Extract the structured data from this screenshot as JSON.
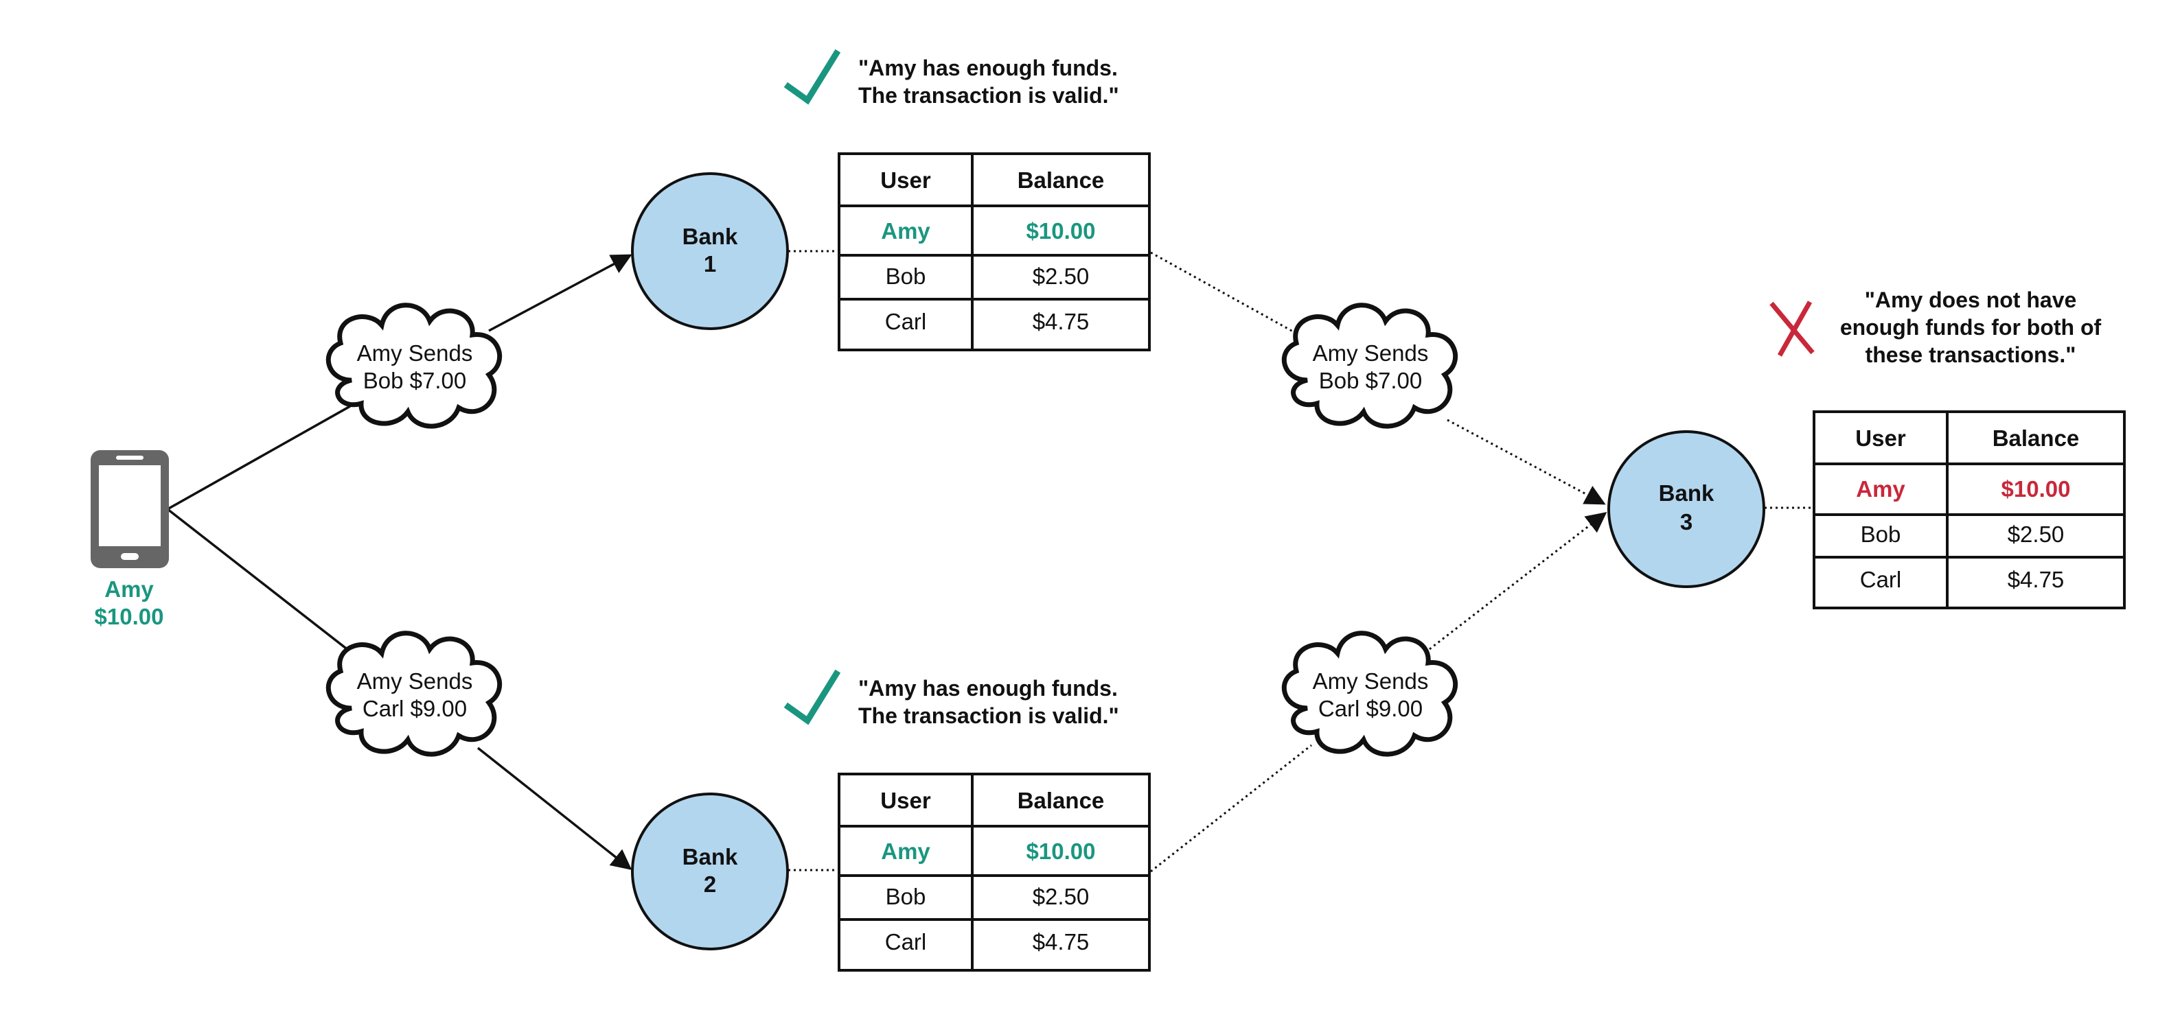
{
  "colors": {
    "ok": "#1a9680",
    "error": "#c8283a",
    "bank_fill": "#b3d6ef",
    "line": "#111111",
    "phone": "#666666"
  },
  "phone": {
    "icon": "smartphone-icon",
    "user": "Amy",
    "amount": "$10.00"
  },
  "clouds": [
    {
      "line1": "Amy Sends",
      "line2": "Bob $7.00"
    },
    {
      "line1": "Amy Sends",
      "line2": "Carl $9.00"
    },
    {
      "line1": "Amy Sends",
      "line2": "Bob $7.00"
    },
    {
      "line1": "Amy Sends",
      "line2": "Carl $9.00"
    }
  ],
  "banks": [
    {
      "name": "Bank",
      "number": "1"
    },
    {
      "name": "Bank",
      "number": "2"
    },
    {
      "name": "Bank",
      "number": "3"
    }
  ],
  "messages": {
    "valid": {
      "icon": "checkmark-icon",
      "line1": "\"Amy has enough funds.",
      "line2": "The transaction is valid.\""
    },
    "invalid": {
      "icon": "cross-icon",
      "line1": "\"Amy does not have",
      "line2": "enough funds for both of",
      "line3": "these transactions.\""
    }
  },
  "tables": [
    {
      "headers": [
        "User",
        "Balance"
      ],
      "rows": [
        [
          "Amy",
          "$10.00"
        ],
        [
          "Bob",
          "$2.50"
        ],
        [
          "Carl",
          "$4.75"
        ]
      ]
    },
    {
      "headers": [
        "User",
        "Balance"
      ],
      "rows": [
        [
          "Amy",
          "$10.00"
        ],
        [
          "Bob",
          "$2.50"
        ],
        [
          "Carl",
          "$4.75"
        ]
      ]
    },
    {
      "headers": [
        "User",
        "Balance"
      ],
      "rows": [
        [
          "Amy",
          "$10.00"
        ],
        [
          "Bob",
          "$2.50"
        ],
        [
          "Carl",
          "$4.75"
        ]
      ]
    }
  ]
}
